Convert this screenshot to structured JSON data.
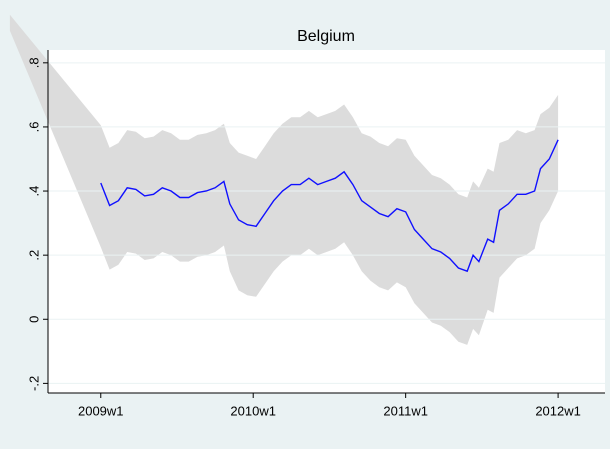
{
  "chart_data": {
    "type": "line",
    "title": "Belgium",
    "x": [
      2517,
      2548,
      2551,
      2554,
      2557,
      2560,
      2563,
      2566,
      2569,
      2572,
      2575,
      2578,
      2581,
      2584,
      2587,
      2590,
      2592,
      2595,
      2598,
      2601,
      2604,
      2607,
      2610,
      2613,
      2616,
      2619,
      2622,
      2625,
      2628,
      2631,
      2634,
      2637,
      2640,
      2643,
      2646,
      2649,
      2652,
      2655,
      2658,
      2661,
      2664,
      2667,
      2670,
      2673,
      2675,
      2677,
      2680,
      2682,
      2684,
      2687,
      2690,
      2693,
      2696,
      2698,
      2701,
      2704
    ],
    "series": [
      {
        "color": "#1010ff",
        "values": [
          null,
          0.425,
          0.355,
          0.37,
          0.41,
          0.405,
          0.385,
          0.39,
          0.41,
          0.4,
          0.38,
          0.38,
          0.395,
          0.4,
          0.41,
          0.43,
          0.36,
          0.31,
          0.295,
          0.29,
          0.33,
          0.37,
          0.4,
          0.42,
          0.42,
          0.44,
          0.42,
          0.43,
          0.44,
          0.46,
          0.42,
          0.37,
          0.35,
          0.33,
          0.32,
          0.345,
          0.335,
          0.28,
          0.25,
          0.22,
          0.21,
          0.19,
          0.16,
          0.15,
          0.2,
          0.18,
          0.25,
          0.24,
          0.34,
          0.36,
          0.39,
          0.39,
          0.4,
          0.47,
          0.5,
          0.56
        ]
      }
    ],
    "band": {
      "color": "#dcdcdc",
      "lower": [
        0.9,
        0.225,
        0.155,
        0.17,
        0.21,
        0.205,
        0.185,
        0.19,
        0.21,
        0.2,
        0.18,
        0.18,
        0.195,
        0.2,
        0.21,
        0.23,
        0.15,
        0.09,
        0.075,
        0.07,
        0.11,
        0.15,
        0.18,
        0.2,
        0.2,
        0.22,
        0.2,
        0.21,
        0.22,
        0.24,
        0.2,
        0.15,
        0.12,
        0.1,
        0.09,
        0.115,
        0.1,
        0.05,
        0.02,
        -0.01,
        -0.02,
        -0.04,
        -0.07,
        -0.08,
        -0.03,
        -0.05,
        0.03,
        0.02,
        0.13,
        0.16,
        0.19,
        0.2,
        0.22,
        0.3,
        0.34,
        0.4
      ],
      "upper": [
        0.95,
        0.605,
        0.535,
        0.55,
        0.59,
        0.585,
        0.565,
        0.57,
        0.59,
        0.58,
        0.56,
        0.56,
        0.575,
        0.58,
        0.59,
        0.61,
        0.55,
        0.52,
        0.51,
        0.5,
        0.54,
        0.58,
        0.61,
        0.63,
        0.63,
        0.65,
        0.63,
        0.64,
        0.65,
        0.67,
        0.63,
        0.58,
        0.57,
        0.55,
        0.54,
        0.565,
        0.56,
        0.51,
        0.48,
        0.45,
        0.44,
        0.42,
        0.39,
        0.38,
        0.43,
        0.41,
        0.47,
        0.46,
        0.55,
        0.56,
        0.59,
        0.58,
        0.59,
        0.64,
        0.66,
        0.7
      ]
    },
    "xlim": [
      2530,
      2720
    ],
    "xticks": [
      {
        "value": 2548,
        "label": "2009w1"
      },
      {
        "value": 2600,
        "label": "2010w1"
      },
      {
        "value": 2652,
        "label": "2011w1"
      },
      {
        "value": 2704,
        "label": "2012w1"
      }
    ],
    "ylim": [
      -0.23,
      0.84
    ],
    "yticks": [
      {
        "value": -0.2,
        "label": "-.2"
      },
      0,
      {
        "value": 0.2,
        "label": ".2"
      },
      {
        "value": 0.4,
        "label": ".4"
      },
      {
        "value": 0.6,
        "label": ".6"
      },
      {
        "value": 0.8,
        "label": ".8"
      }
    ],
    "grid": true
  }
}
